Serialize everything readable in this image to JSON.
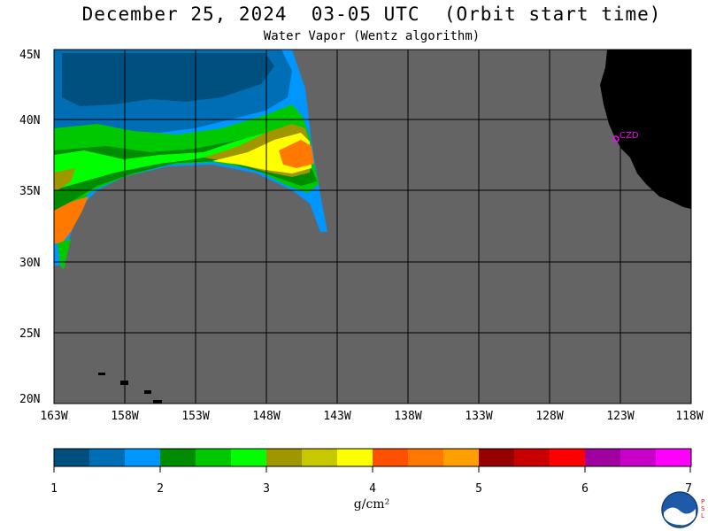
{
  "header": {
    "title": "December 25, 2024  03-05 UTC  (Orbit start time)",
    "subtitle": "Water Vapor (Wentz algorithm)"
  },
  "map": {
    "lat_ticks": [
      "45N",
      "40N",
      "35N",
      "30N",
      "25N",
      "20N"
    ],
    "lon_ticks": [
      "163W",
      "158W",
      "153W",
      "148W",
      "143W",
      "138W",
      "133W",
      "128W",
      "123W",
      "118W"
    ],
    "station_label": "CZD",
    "colors": {
      "no_data": "#646464",
      "land": "#000000",
      "grid": "#000000",
      "station": "#ff00ff"
    }
  },
  "colorbar": {
    "unit_label": "g/cm²",
    "tick_labels": [
      "1",
      "2",
      "3",
      "4",
      "5",
      "6",
      "7"
    ],
    "colors": [
      "#00507f",
      "#006eb4",
      "#0096ff",
      "#008c00",
      "#00c800",
      "#00ff00",
      "#a09600",
      "#c8c800",
      "#ffff00",
      "#ff5000",
      "#ff7800",
      "#ffa000",
      "#960000",
      "#c80000",
      "#ff0000",
      "#a000a0",
      "#c800c8",
      "#ff00ff"
    ]
  },
  "logo": {
    "name": "NOAA",
    "side_text": "PSL"
  }
}
